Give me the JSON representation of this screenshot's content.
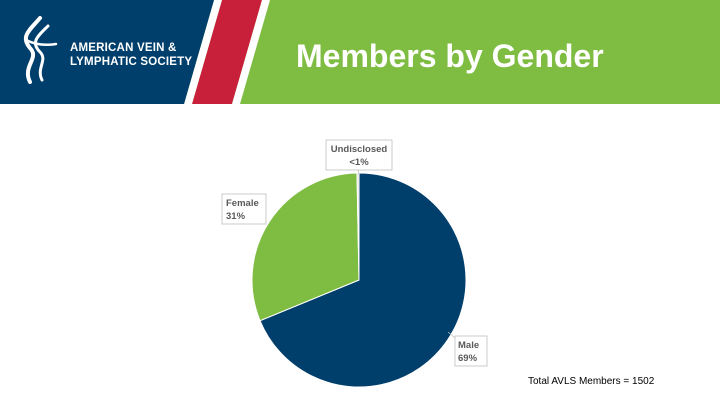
{
  "organization": {
    "name_line1": "AMERICAN VEIN &",
    "name_line2": "LYMPHATIC SOCIETY"
  },
  "slide_title": "Members by Gender",
  "colors": {
    "navy": "#003e6b",
    "green": "#7fbd42",
    "red": "#c8203a",
    "label_gray": "#595959"
  },
  "chart_data": {
    "type": "pie",
    "title": "",
    "slices": [
      {
        "label": "Male",
        "percent_label": "69%",
        "value": 69,
        "color": "#003e6b"
      },
      {
        "label": "Female",
        "percent_label": "31%",
        "value": 31,
        "color": "#7fbd42"
      },
      {
        "label": "Undisclosed",
        "percent_label": "<1%",
        "value": 0.3,
        "color": "#d9d9d9"
      }
    ]
  },
  "footnote": "Total AVLS Members = 1502"
}
